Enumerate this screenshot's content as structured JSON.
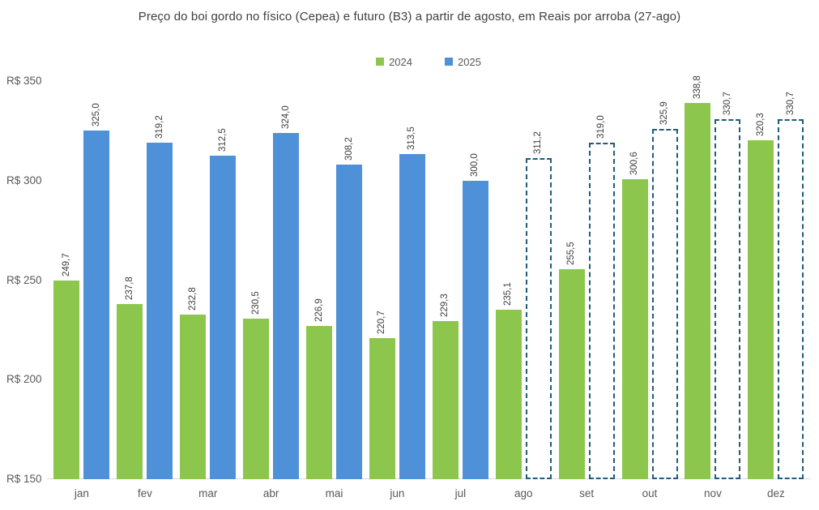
{
  "chart_data": {
    "type": "bar",
    "title": "Preço do boi gordo no físico (Cepea) e futuro (B3) a partir de agosto, em Reais por arroba (27-ago)",
    "categories": [
      "jan",
      "fev",
      "mar",
      "abr",
      "mai",
      "jun",
      "jul",
      "ago",
      "set",
      "out",
      "nov",
      "dez"
    ],
    "series": [
      {
        "name": "2024",
        "color": "#8dc64c",
        "values": [
          249.7,
          237.8,
          232.8,
          230.5,
          226.9,
          220.7,
          229.3,
          235.1,
          255.5,
          300.6,
          338.8,
          320.3
        ]
      },
      {
        "name": "2025",
        "color": "#4e91d9",
        "dashed_from_index": 7,
        "dashed_color": "#205c7a",
        "values": [
          325.0,
          319.2,
          312.5,
          324.0,
          308.2,
          313.5,
          300.0,
          311.2,
          319.0,
          325.9,
          330.7,
          330.7
        ]
      }
    ],
    "ylim": [
      150,
      350
    ],
    "ytick_step": 50,
    "ytick_prefix": "R$ ",
    "decimal_separator": ",",
    "legend_position": "top",
    "grid": false,
    "colors": {
      "title_text": "#3f3f3f",
      "tick_text": "#595959",
      "value_label_text": "#404040",
      "axis_line": "#d9d9d9",
      "background": "#ffffff"
    }
  }
}
